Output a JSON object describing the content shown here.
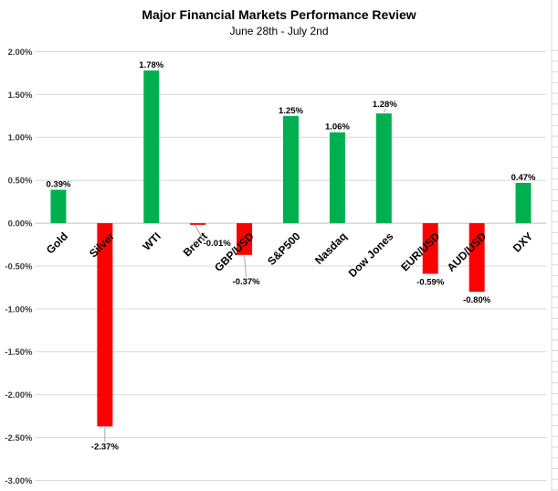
{
  "chart_data": {
    "type": "bar",
    "title": "Major Financial Markets Performance Review",
    "subtitle": "June 28th - July 2nd",
    "categories": [
      "Gold",
      "Silver",
      "WTI",
      "Brent",
      "GBP/USD",
      "S&P500",
      "Nasdaq",
      "Dow Jones",
      "EUR/USD",
      "AUD/USD",
      "DXY"
    ],
    "values": [
      0.39,
      -2.37,
      1.78,
      -0.01,
      -0.37,
      1.25,
      1.06,
      1.28,
      -0.59,
      -0.8,
      0.47
    ],
    "value_labels": [
      "0.39%",
      "-2.37%",
      "1.78%",
      "-0.01%",
      "-0.37%",
      "1.25%",
      "1.06%",
      "1.28%",
      "-0.59%",
      "-0.80%",
      "0.47%"
    ],
    "xlabel": "",
    "ylabel": "",
    "ylim": [
      -3,
      2
    ],
    "y_tick_step": 0.5,
    "y_ticks": [
      "2.00%",
      "1.50%",
      "1.00%",
      "0.50%",
      "0.00%",
      "-0.50%",
      "-1.00%",
      "-1.50%",
      "-2.00%",
      "-2.50%",
      "-3.00%"
    ],
    "grid": true,
    "legend": null,
    "positive_color": "#00B050",
    "negative_color": "#FF0000",
    "gridline_color": "#D9D9D9",
    "axis_line_color": "#C0C0C0",
    "leader_line_color": "#A6A6A6",
    "label_color": "#000000",
    "tick_label_color": "#3B3B3B",
    "callouts": {
      "Silver": {
        "dx": 0,
        "dy": 13
      },
      "Brent": {
        "dx": 21,
        "dy": 12
      },
      "GBP/USD": {
        "dx": 2,
        "dy": 20
      },
      "Dow Jones": {
        "dx": 1,
        "dy": -4
      }
    }
  }
}
